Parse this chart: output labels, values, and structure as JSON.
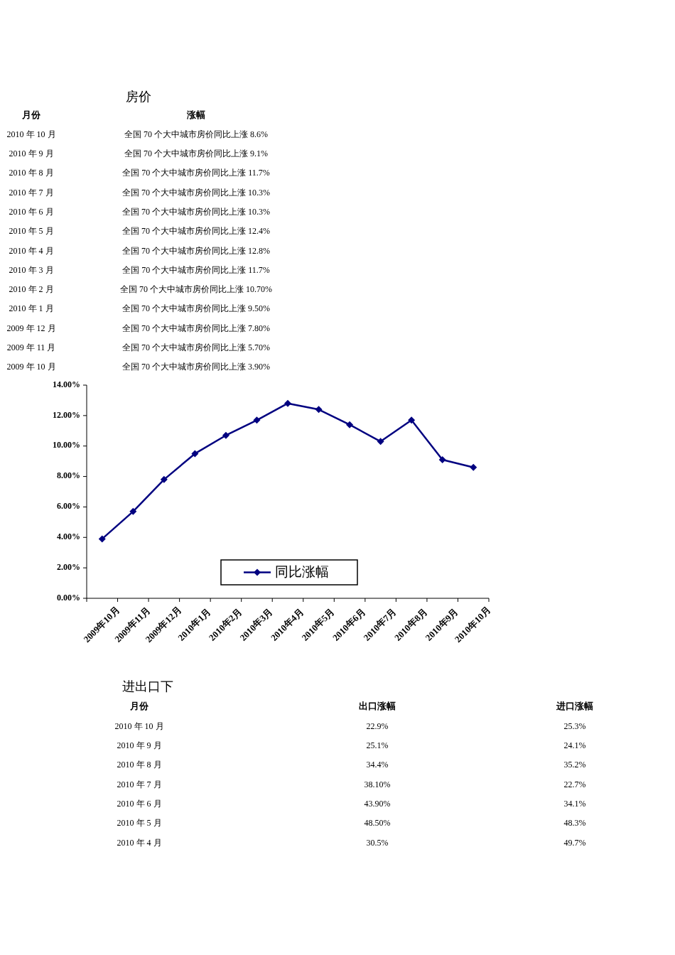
{
  "chart_data": [
    {
      "type": "other",
      "title": "房价",
      "annotations": [
        "月份",
        "涨幅",
        "2010 年 10 月",
        "全国 70 个大中城市房价同比上涨 8.6%",
        "2010 年 9 月",
        "全国 70 个大中城市房价同比上涨 9.1%",
        "2010 年 8 月",
        "全国 70 个大中城市房价同比上涨 11.7%",
        "2010 年 7 月",
        "全国 70 个大中城市房价同比上涨 10.3%",
        "2010 年 6 月",
        "全国 70 个大中城市房价同比上涨 10.3%",
        "2010 年 5 月",
        "全国 70 个大中城市房价同比上涨 12.4%",
        "2010 年 4 月",
        "全国 70 个大中城市房价同比上涨 12.8%",
        "2010 年 3 月",
        "全国 70 个大中城市房价同比上涨 11.7%",
        "2010 年 2 月",
        "全国 70 个大中城市房价同比上涨 10.70%",
        "2010 年 1 月",
        "全国 70 个大中城市房价同比上涨 9.50%",
        "2009 年 12 月",
        "全国 70 个大中城市房价同比上涨 7.80%",
        "2009 年 11 月",
        "全国 70 个大中城市房价同比上涨 5.70%",
        "2009 年 10 月",
        "全国 70 个大中城市房价同比上涨 3.90%"
      ]
    },
    {
      "type": "line",
      "categories": [
        "2009年10月",
        "2009年11月",
        "2009年12月",
        "2010年1月",
        "2010年2月",
        "2010年3月",
        "2010年4月",
        "2010年5月",
        "2010年6月",
        "2010年7月",
        "2010年8月",
        "2010年9月",
        "2010年10月"
      ],
      "series": [
        {
          "name": "同比涨幅",
          "color": "#000080",
          "values": [
            3.9,
            5.7,
            7.8,
            9.5,
            10.7,
            11.7,
            12.8,
            12.4,
            11.4,
            10.3,
            11.7,
            9.1,
            8.6
          ]
        }
      ],
      "ylim": [
        0,
        14
      ],
      "yticks": [
        {
          "value": 0,
          "label": "0.00%"
        },
        {
          "value": 2,
          "label": "2.00%"
        },
        {
          "value": 4,
          "label": "4.00%"
        },
        {
          "value": 6,
          "label": "6.00%"
        },
        {
          "value": 8,
          "label": "8.00%"
        },
        {
          "value": 10,
          "label": "10.00%"
        },
        {
          "value": 12,
          "label": "12.00%"
        },
        {
          "value": 14,
          "label": "14.00%"
        }
      ],
      "legend": "bottom",
      "marker": "diamond",
      "line_style": "solid"
    },
    {
      "type": "other",
      "title": "进出口下",
      "annotations": [
        "月份",
        "出口涨幅",
        "进口涨幅",
        "2010 年 10 月",
        "22.9%",
        "25.3%",
        "2010 年 9 月",
        "25.1%",
        "24.1%",
        "2010 年 8 月",
        "34.4%",
        "35.2%",
        "2010 年 7 月",
        "38.10%",
        "22.7%",
        "2010 年 6 月",
        "43.90%",
        "34.1%",
        "2010 年 5 月",
        "48.50%",
        "48.3%",
        "2010 年 4 月",
        "30.5%",
        "49.7%"
      ]
    }
  ]
}
